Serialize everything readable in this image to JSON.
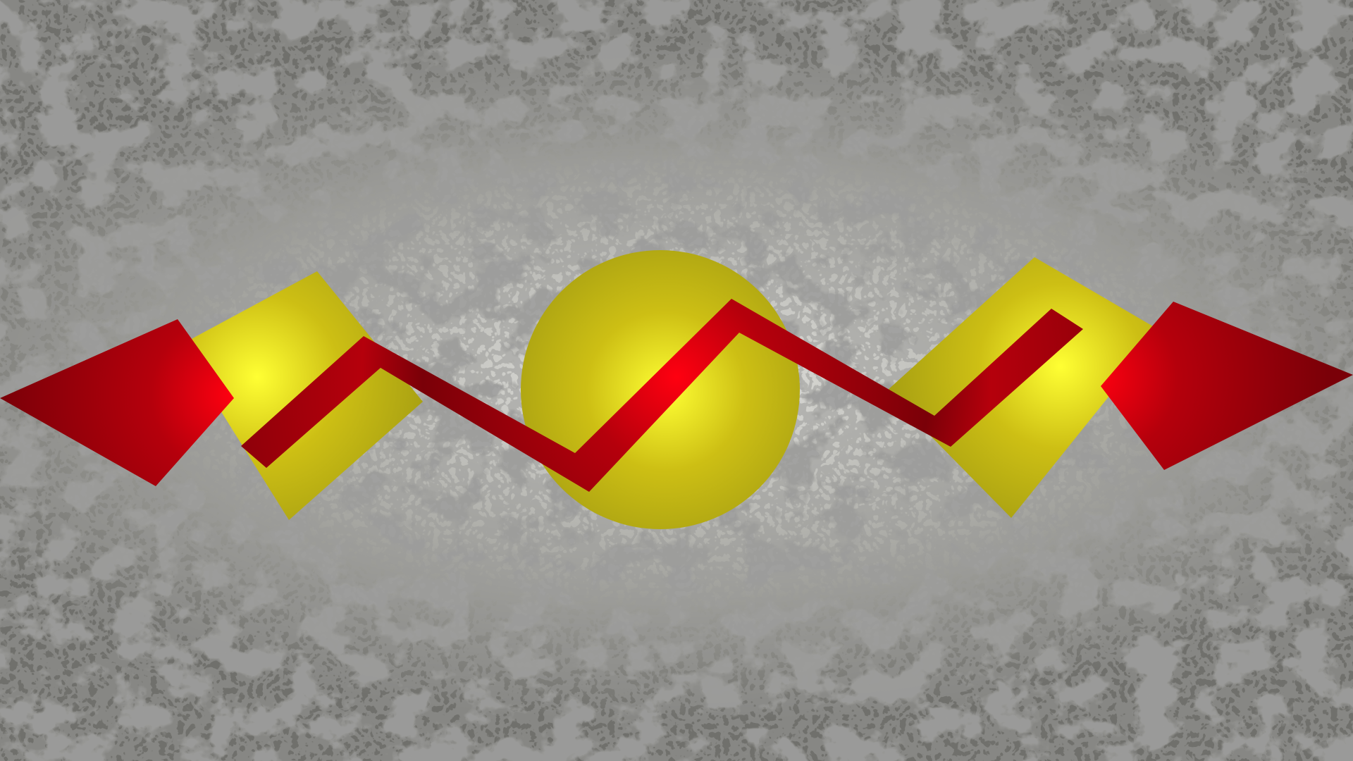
{
  "artwork": {
    "colors": {
      "background_light": "#e4e4e0",
      "background_mid": "#a9a9a4",
      "background_dark": "#70706c",
      "speckle": "#5a5a56",
      "yellow_dark": "#a39c12",
      "yellow_mid": "#cdbf14",
      "yellow_bright": "#ffff33",
      "red_dark": "#7a0008",
      "red_mid": "#b5000c",
      "red_bright": "#ff0010"
    },
    "icons": {
      "left_arrowhead": "left-diamond-arrowhead-icon",
      "right_arrowhead": "right-diamond-arrowhead-icon",
      "zigzag": "zigzag-line-icon",
      "left_square": "tilted-yellow-square-icon",
      "center_circle": "yellow-circle-icon",
      "right_square": "tilted-yellow-square-icon"
    }
  }
}
